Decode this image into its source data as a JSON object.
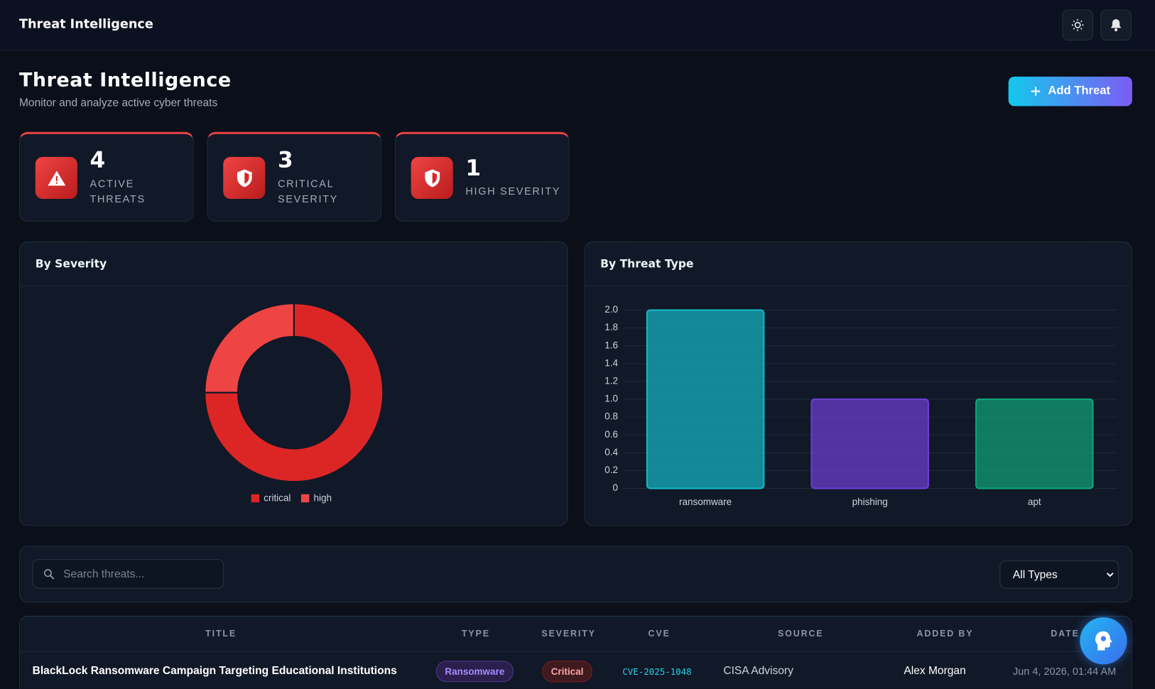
{
  "header": {
    "title": "Threat Intelligence"
  },
  "page": {
    "title": "Threat Intelligence",
    "subtitle": "Monitor and analyze active cyber threats",
    "add_button": "Add Threat"
  },
  "stats": [
    {
      "value": 4,
      "label": [
        "ACTIVE",
        "THREATS"
      ]
    },
    {
      "value": 3,
      "label": [
        "CRITICAL",
        "SEVERITY"
      ]
    },
    {
      "value": 1,
      "label": [
        "HIGH SEVERITY"
      ]
    }
  ],
  "chart_data": [
    {
      "type": "pie",
      "title": "By Severity",
      "categories": [
        "critical",
        "high"
      ],
      "values": [
        3,
        1
      ],
      "colors": [
        "#dc2626",
        "#ef4444"
      ],
      "donut": true,
      "legend": "bottom"
    },
    {
      "type": "bar",
      "title": "By Threat Type",
      "categories": [
        "ransomware",
        "phishing",
        "apt"
      ],
      "values": [
        2,
        1,
        1
      ],
      "colors": [
        "#14b8c6",
        "#6d3fd6",
        "#10a57a"
      ],
      "ylim": [
        0,
        2
      ],
      "yticks": [
        0,
        0.2,
        0.4,
        0.6,
        0.8,
        {
          "value": 1,
          "label": "1.0"
        },
        1.2,
        1.4,
        1.6,
        1.8,
        {
          "value": 2,
          "label": "2.0"
        }
      ],
      "grid": true
    }
  ],
  "filters": {
    "search_placeholder": "Search threats...",
    "type_select": "All Types"
  },
  "table": {
    "columns": [
      "TITLE",
      "TYPE",
      "SEVERITY",
      "CVE",
      "SOURCE",
      "ADDED BY",
      "DATE"
    ],
    "rows": [
      [
        "BlackLock Ransomware Campaign Targeting Educational Institutions",
        "Ransomware",
        "Critical",
        "CVE-2025-1048",
        "CISA Advisory",
        "Alex Morgan",
        "Jun 4, 2026, 01:44 AM"
      ]
    ]
  }
}
